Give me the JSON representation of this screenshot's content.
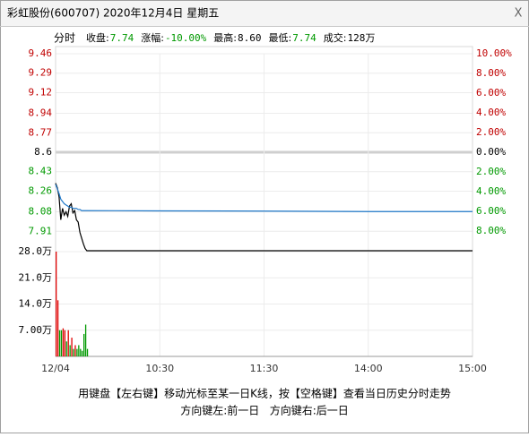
{
  "window": {
    "title": "彩虹股份(600707) 2020年12月4日 星期五",
    "close": "X"
  },
  "info": {
    "tab": "分时",
    "items": [
      {
        "label": "收盘:",
        "value": "7.74",
        "color": "#009900"
      },
      {
        "label": "涨幅:",
        "value": "-10.00%",
        "color": "#009900"
      },
      {
        "label": "最高:",
        "value": "8.60",
        "color": "#000000"
      },
      {
        "label": "最低:",
        "value": "7.74",
        "color": "#009900"
      },
      {
        "label": "成交:",
        "value": "128万",
        "color": "#000000"
      }
    ]
  },
  "chart_data": [
    {
      "type": "line",
      "ylim": [
        7.74,
        9.46
      ],
      "yticks": [
        9.46,
        9.29,
        9.12,
        8.94,
        8.77,
        8.6,
        8.43,
        8.26,
        8.08,
        7.91
      ],
      "base": 8.6,
      "y2lim": [
        -10,
        10
      ],
      "y2ticks": [
        {
          "value": 10,
          "label": "10.00%"
        },
        {
          "value": 8,
          "label": "8.00%"
        },
        {
          "value": 6,
          "label": "6.00%"
        },
        {
          "value": 4,
          "label": "4.00%"
        },
        {
          "value": 2,
          "label": "2.00%"
        },
        {
          "value": 0,
          "label": "0.00%"
        },
        {
          "value": -2,
          "label": "2.00%"
        },
        {
          "value": -4,
          "label": "4.00%"
        },
        {
          "value": -6,
          "label": "6.00%"
        },
        {
          "value": -8,
          "label": "8.00%"
        }
      ],
      "xlim": [
        0,
        240
      ],
      "x": [
        0,
        1,
        2,
        3,
        4,
        5,
        6,
        7,
        8,
        9,
        10,
        11,
        12,
        13,
        14,
        15,
        16,
        17,
        18,
        60,
        120,
        180,
        240
      ],
      "series": [
        {
          "name": "price",
          "color": "#000000",
          "values": [
            8.33,
            8.29,
            8.21,
            8.01,
            8.11,
            8.05,
            8.08,
            8.04,
            8.13,
            8.15,
            8.07,
            8.09,
            8.01,
            7.99,
            7.9,
            7.85,
            7.8,
            7.76,
            7.74,
            7.74,
            7.74,
            7.74,
            7.74
          ]
        },
        {
          "name": "average",
          "color": "#1f78c8",
          "values": [
            8.32,
            8.28,
            8.24,
            8.19,
            8.17,
            8.15,
            8.14,
            8.13,
            8.12,
            8.12,
            8.11,
            8.11,
            8.11,
            8.1,
            8.1,
            8.09,
            8.09,
            8.09,
            8.09,
            8.088,
            8.086,
            8.082,
            8.082
          ]
        }
      ]
    },
    {
      "type": "bar",
      "ylim": [
        0,
        28
      ],
      "yticks": [
        {
          "value": 28,
          "label": "28.0万"
        },
        {
          "value": 21,
          "label": "21.0万"
        },
        {
          "value": 14,
          "label": "14.0万"
        },
        {
          "value": 7,
          "label": "7.00万"
        }
      ],
      "xlim": [
        0,
        240
      ],
      "xticks": [
        {
          "value": 0,
          "label": "12/04"
        },
        {
          "value": 60,
          "label": "10:30"
        },
        {
          "value": 120,
          "label": "11:30"
        },
        {
          "value": 180,
          "label": "14:00"
        },
        {
          "value": 240,
          "label": "15:00"
        }
      ],
      "x": [
        0,
        1,
        2,
        3,
        4,
        5,
        6,
        7,
        8,
        9,
        10,
        11,
        12,
        13,
        14,
        15,
        16,
        17,
        18
      ],
      "values": [
        28,
        15,
        7,
        7,
        7.5,
        7,
        4,
        7,
        3,
        5,
        2,
        3,
        2,
        3,
        2,
        1.5,
        6,
        8.5,
        2
      ],
      "colors": [
        "#e00000",
        "#e00000",
        "#009900",
        "#009900",
        "#e00000",
        "#e00000",
        "#009900",
        "#e00000",
        "#009900",
        "#e00000",
        "#009900",
        "#e00000",
        "#009900",
        "#009900",
        "#009900",
        "#009900",
        "#009900",
        "#009900",
        "#009900"
      ]
    }
  ],
  "footer": [
    "用键盘【左右键】移动光标至某一日K线，按【空格键】查看当日历史分时走势",
    "方向键左:前一日   方向键右:后一日"
  ]
}
